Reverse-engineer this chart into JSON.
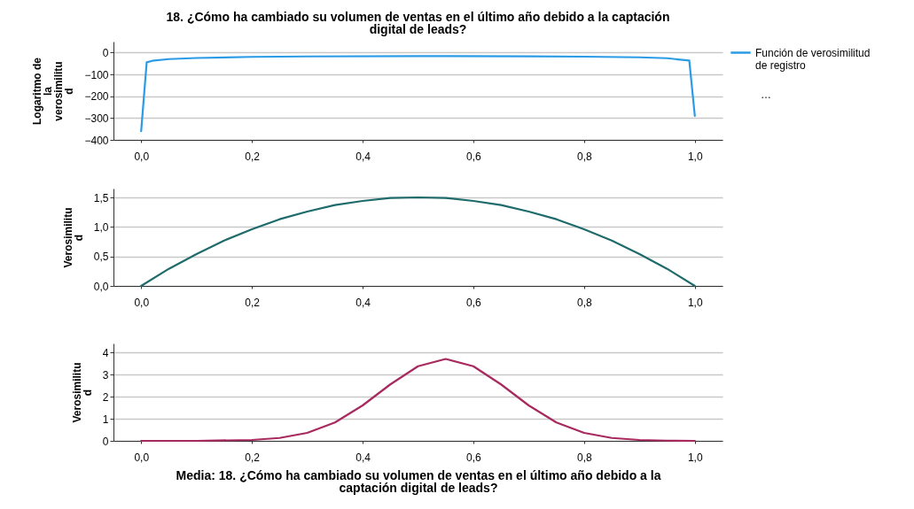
{
  "chart_data": [
    {
      "type": "line",
      "title": "18. ¿Cómo ha cambiado su volumen de ventas en el último año debido a la captación digital de leads?",
      "ylabel": "Logaritmo de la verosimilitud",
      "legend": "right",
      "grid": "y",
      "annotations": [
        "…"
      ],
      "xlim": [
        -0.05,
        1.05
      ],
      "xticks": [
        {
          "value": 0,
          "label": "0,0"
        },
        {
          "value": 0.2,
          "label": "0,2"
        },
        {
          "value": 0.4,
          "label": "0,4"
        },
        {
          "value": 0.6,
          "label": "0,6"
        },
        {
          "value": 0.8,
          "label": "0,8"
        },
        {
          "value": 1,
          "label": "1,0"
        }
      ],
      "ylim": [
        -400,
        50
      ],
      "yticks": [
        -400,
        -300,
        -200,
        -100,
        0
      ],
      "series": [
        {
          "name": "Función de verosimilitud de registro",
          "color": "#2b9be6",
          "x": [
            0,
            0.01,
            0.02,
            0.05,
            0.1,
            0.2,
            0.3,
            0.5,
            0.7,
            0.8,
            0.9,
            0.95,
            0.99,
            1
          ],
          "values": [
            -360,
            -45,
            -38,
            -30,
            -25,
            -20,
            -18,
            -16,
            -17,
            -19,
            -22,
            -26,
            -37,
            -290
          ]
        }
      ]
    },
    {
      "type": "line",
      "ylabel": "Verosimilitud",
      "grid": "y",
      "xlim": [
        -0.05,
        1.05
      ],
      "xticks": [
        {
          "value": 0,
          "label": "0,0"
        },
        {
          "value": 0.2,
          "label": "0,2"
        },
        {
          "value": 0.4,
          "label": "0,4"
        },
        {
          "value": 0.6,
          "label": "0,6"
        },
        {
          "value": 0.8,
          "label": "0,8"
        },
        {
          "value": 1,
          "label": "1,0"
        }
      ],
      "ylim": [
        0,
        1.65
      ],
      "yticks": [
        {
          "value": 0,
          "label": "0,0"
        },
        {
          "value": 0.5,
          "label": "0,5"
        },
        {
          "value": 1,
          "label": "1,0"
        },
        {
          "value": 1.5,
          "label": "1,5"
        }
      ],
      "series": [
        {
          "color": "#1f6b6b",
          "x": [
            0,
            0.05,
            0.1,
            0.15,
            0.2,
            0.25,
            0.3,
            0.35,
            0.4,
            0.45,
            0.5,
            0.55,
            0.6,
            0.65,
            0.7,
            0.75,
            0.8,
            0.85,
            0.9,
            0.95,
            1
          ],
          "values": [
            0,
            0.29,
            0.54,
            0.77,
            0.96,
            1.13,
            1.26,
            1.37,
            1.44,
            1.49,
            1.5,
            1.49,
            1.44,
            1.37,
            1.26,
            1.13,
            0.96,
            0.77,
            0.54,
            0.29,
            0
          ]
        }
      ]
    },
    {
      "type": "line",
      "ylabel": "Verosimilitud",
      "xlabel": "Media: 18. ¿Cómo ha cambiado su volumen de ventas en el último año debido a la captación digital de leads?",
      "grid": "y",
      "xlim": [
        -0.05,
        1.05
      ],
      "xticks": [
        {
          "value": 0,
          "label": "0,0"
        },
        {
          "value": 0.2,
          "label": "0,2"
        },
        {
          "value": 0.4,
          "label": "0,4"
        },
        {
          "value": 0.6,
          "label": "0,6"
        },
        {
          "value": 0.8,
          "label": "0,8"
        },
        {
          "value": 1,
          "label": "1,0"
        }
      ],
      "ylim": [
        0,
        4.4
      ],
      "yticks": [
        0,
        1,
        2,
        3,
        4
      ],
      "series": [
        {
          "color": "#a8295e",
          "x": [
            0,
            0.1,
            0.2,
            0.25,
            0.3,
            0.35,
            0.4,
            0.45,
            0.5,
            0.55,
            0.6,
            0.65,
            0.7,
            0.75,
            0.8,
            0.85,
            0.9,
            0.95,
            1
          ],
          "values": [
            0,
            0,
            0.04,
            0.13,
            0.36,
            0.83,
            1.6,
            2.55,
            3.37,
            3.7,
            3.37,
            2.55,
            1.6,
            0.83,
            0.36,
            0.13,
            0.04,
            0.01,
            0
          ]
        }
      ]
    }
  ]
}
